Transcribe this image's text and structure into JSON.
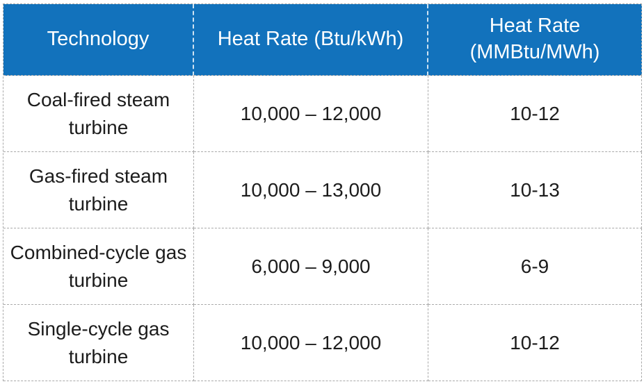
{
  "colors": {
    "header_bg": "#1272bc",
    "header_text": "#ffffff",
    "body_text": "#1c1c1c",
    "grid_border": "#a9a9a9",
    "header_divider": "#e8f0f8",
    "row_bg": "#ffffff"
  },
  "table": {
    "columns": [
      "Technology",
      "Heat Rate (Btu/kWh)",
      "Heat Rate (MMBtu/MWh)"
    ],
    "rows": [
      [
        "Coal-fired steam turbine",
        "10,000 – 12,000",
        "10-12"
      ],
      [
        "Gas-fired steam turbine",
        "10,000 – 13,000",
        "10-13"
      ],
      [
        "Combined-cycle gas turbine",
        "6,000 – 9,000",
        "6-9"
      ],
      [
        "Single-cycle gas turbine",
        "10,000 – 12,000",
        "10-12"
      ]
    ]
  },
  "chart_data": {
    "type": "table",
    "title": "",
    "columns": [
      "Technology",
      "Heat Rate (Btu/kWh)",
      "Heat Rate (MMBtu/MWh)"
    ],
    "rows": [
      {
        "technology": "Coal-fired steam turbine",
        "heat_rate_btu_kwh": "10,000 – 12,000",
        "heat_rate_mmbtu_mwh": "10-12"
      },
      {
        "technology": "Gas-fired steam turbine",
        "heat_rate_btu_kwh": "10,000 – 13,000",
        "heat_rate_mmbtu_mwh": "10-13"
      },
      {
        "technology": "Combined-cycle gas turbine",
        "heat_rate_btu_kwh": "6,000 – 9,000",
        "heat_rate_mmbtu_mwh": "6-9"
      },
      {
        "technology": "Single-cycle gas turbine",
        "heat_rate_btu_kwh": "10,000 – 12,000",
        "heat_rate_mmbtu_mwh": "10-12"
      }
    ]
  }
}
